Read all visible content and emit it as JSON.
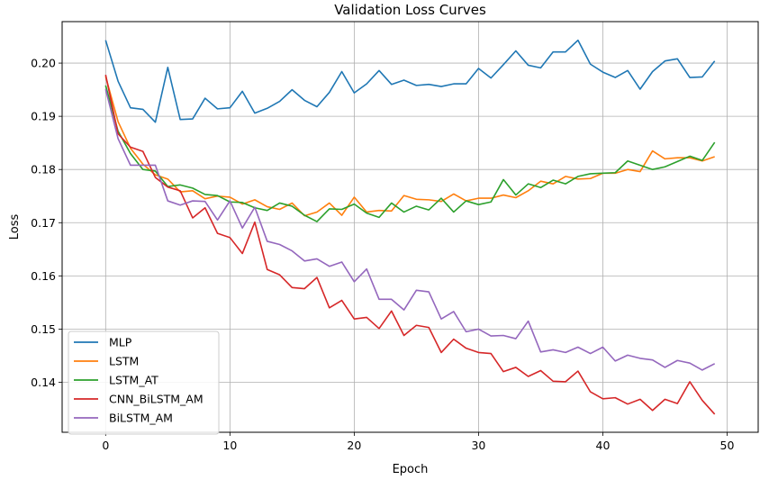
{
  "chart_data": {
    "type": "line",
    "title": "Validation Loss Curves",
    "xlabel": "Epoch",
    "ylabel": "Loss",
    "xlim": [
      -3.5,
      52.5
    ],
    "ylim": [
      0.1306,
      0.2078
    ],
    "xticks": [
      0,
      10,
      20,
      30,
      40,
      50
    ],
    "yticks": [
      0.14,
      0.15,
      0.16,
      0.17,
      0.18,
      0.19,
      0.2
    ],
    "ytick_labels": [
      "0.14",
      "0.15",
      "0.16",
      "0.17",
      "0.18",
      "0.19",
      "0.20"
    ],
    "grid": true,
    "legend_position": "lower-left",
    "x": [
      0,
      1,
      2,
      3,
      4,
      5,
      6,
      7,
      8,
      9,
      10,
      11,
      12,
      13,
      14,
      15,
      16,
      17,
      18,
      19,
      20,
      21,
      22,
      23,
      24,
      25,
      26,
      27,
      28,
      29,
      30,
      31,
      32,
      33,
      34,
      35,
      36,
      37,
      38,
      39,
      40,
      41,
      42,
      43,
      44,
      45,
      46,
      47,
      48,
      49
    ],
    "series": [
      {
        "name": "MLP",
        "color": "#1f77b4",
        "values": [
          0.2043,
          0.1966,
          0.1916,
          0.1913,
          0.1889,
          0.1992,
          0.1894,
          0.1895,
          0.1934,
          0.1914,
          0.1916,
          0.1947,
          0.1906,
          0.1915,
          0.1928,
          0.195,
          0.193,
          0.1918,
          0.1945,
          0.1984,
          0.1944,
          0.1961,
          0.1986,
          0.196,
          0.1968,
          0.1958,
          0.196,
          0.1956,
          0.1961,
          0.1961,
          0.199,
          0.1972,
          0.1997,
          0.2023,
          0.1996,
          0.1991,
          0.2021,
          0.2021,
          0.2043,
          0.1998,
          0.1983,
          0.1973,
          0.1986,
          0.1951,
          0.1984,
          0.2004,
          0.2008,
          0.1973,
          0.1974,
          0.2004
        ]
      },
      {
        "name": "LSTM",
        "color": "#ff7f0e",
        "values": [
          0.1975,
          0.189,
          0.184,
          0.181,
          0.179,
          0.1782,
          0.1758,
          0.176,
          0.1745,
          0.175,
          0.1748,
          0.1735,
          0.1743,
          0.173,
          0.1725,
          0.1737,
          0.1713,
          0.172,
          0.1737,
          0.1714,
          0.1748,
          0.172,
          0.1723,
          0.1722,
          0.1751,
          0.1744,
          0.1743,
          0.174,
          0.1754,
          0.1741,
          0.1746,
          0.1746,
          0.1752,
          0.1747,
          0.176,
          0.1778,
          0.1773,
          0.1787,
          0.1782,
          0.1783,
          0.1793,
          0.1793,
          0.18,
          0.1796,
          0.1835,
          0.182,
          0.1822,
          0.1822,
          0.1816,
          0.1824
        ]
      },
      {
        "name": "LSTM_AT",
        "color": "#2ca02c",
        "values": [
          0.1958,
          0.1872,
          0.183,
          0.18,
          0.1797,
          0.1768,
          0.1771,
          0.1765,
          0.1753,
          0.1751,
          0.1739,
          0.1738,
          0.1728,
          0.1723,
          0.1737,
          0.1731,
          0.1714,
          0.1702,
          0.1726,
          0.1725,
          0.1735,
          0.1718,
          0.171,
          0.1737,
          0.172,
          0.1731,
          0.1724,
          0.1746,
          0.172,
          0.1741,
          0.1734,
          0.1739,
          0.1781,
          0.1752,
          0.1773,
          0.1766,
          0.178,
          0.1773,
          0.1787,
          0.1792,
          0.1793,
          0.1794,
          0.1816,
          0.1808,
          0.18,
          0.1805,
          0.1815,
          0.1825,
          0.1817,
          0.1851
        ]
      },
      {
        "name": "CNN_BiLSTM_AM",
        "color": "#d62728",
        "values": [
          0.1978,
          0.1867,
          0.1842,
          0.1834,
          0.1785,
          0.1767,
          0.176,
          0.1709,
          0.1728,
          0.168,
          0.1672,
          0.1642,
          0.1701,
          0.1612,
          0.1602,
          0.1578,
          0.1576,
          0.1597,
          0.154,
          0.1554,
          0.1519,
          0.1522,
          0.1501,
          0.1534,
          0.1488,
          0.1507,
          0.1503,
          0.1456,
          0.1481,
          0.1464,
          0.1456,
          0.1454,
          0.142,
          0.1428,
          0.1411,
          0.1422,
          0.1402,
          0.1401,
          0.1421,
          0.1382,
          0.1369,
          0.1371,
          0.1359,
          0.1368,
          0.1347,
          0.1368,
          0.136,
          0.1401,
          0.1366,
          0.134
        ]
      },
      {
        "name": "BiLSTM_AM",
        "color": "#9467bd",
        "values": [
          0.1951,
          0.1858,
          0.1808,
          0.1808,
          0.1808,
          0.1741,
          0.1733,
          0.1741,
          0.174,
          0.1705,
          0.1741,
          0.169,
          0.1729,
          0.1665,
          0.1659,
          0.1647,
          0.1628,
          0.1632,
          0.1618,
          0.1626,
          0.1589,
          0.1613,
          0.1556,
          0.1556,
          0.1536,
          0.1573,
          0.157,
          0.1519,
          0.1533,
          0.1495,
          0.15,
          0.1487,
          0.1488,
          0.1482,
          0.1515,
          0.1457,
          0.1461,
          0.1456,
          0.1466,
          0.1454,
          0.1466,
          0.144,
          0.1451,
          0.1445,
          0.1442,
          0.1428,
          0.1441,
          0.1436,
          0.1423,
          0.1435
        ]
      }
    ]
  }
}
